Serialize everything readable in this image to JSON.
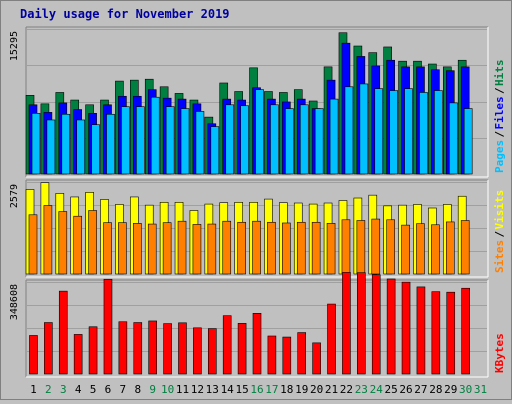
{
  "chart_data": {
    "type": "bar",
    "title": "Daily usage for November 2019",
    "colors": {
      "background": "#c0c0c0",
      "title": "#0000a0",
      "pages": "#00c0ff",
      "files": "#0000ff",
      "hits": "#008040",
      "sites": "#ff8000",
      "visits": "#ffff00",
      "kbytes": "#ff0000",
      "weekend_label": "#008040"
    },
    "x": [
      "1",
      "2",
      "3",
      "4",
      "5",
      "6",
      "7",
      "8",
      "9",
      "10",
      "11",
      "12",
      "13",
      "14",
      "15",
      "16",
      "17",
      "18",
      "19",
      "20",
      "21",
      "22",
      "23",
      "24",
      "25",
      "26",
      "27",
      "28",
      "29",
      "30",
      "31"
    ],
    "weekend_days": [
      "2",
      "3",
      "9",
      "10",
      "16",
      "17",
      "23",
      "24",
      "30",
      "31"
    ],
    "panels": [
      {
        "id": "hits_files_pages",
        "ytick": "15295",
        "ymax": 15295,
        "legend": [
          "Pages",
          "Files",
          "Hits"
        ],
        "series": [
          {
            "name": "Hits",
            "color": "#008040",
            "values": [
              8300,
              7400,
              8600,
              7800,
              7300,
              7800,
              9800,
              9900,
              10000,
              9200,
              8500,
              7800,
              6000,
              9600,
              8700,
              11200,
              8700,
              8600,
              8900,
              7700,
              11300,
              14900,
              13500,
              12800,
              13400,
              11900,
              11900,
              11600,
              11300,
              12000,
              0
            ]
          },
          {
            "name": "Files",
            "color": "#0000ff",
            "values": [
              7300,
              6500,
              7500,
              6800,
              6400,
              7300,
              8200,
              8200,
              8900,
              8000,
              7900,
              7400,
              5300,
              7900,
              7800,
              9100,
              7900,
              7600,
              7900,
              6900,
              9900,
              13800,
              12400,
              11400,
              12000,
              11300,
              11300,
              11000,
              10900,
              11300,
              0
            ]
          },
          {
            "name": "Pages",
            "color": "#00c0ff",
            "values": [
              6400,
              5700,
              6300,
              5700,
              5200,
              6300,
              7100,
              7100,
              8100,
              7100,
              6900,
              6600,
              5000,
              7300,
              7200,
              8900,
              7300,
              6900,
              7300,
              6900,
              7900,
              9200,
              9500,
              9000,
              8800,
              9000,
              8600,
              8800,
              7500,
              6900,
              0
            ]
          }
        ]
      },
      {
        "id": "visits_sites",
        "ytick": "2579",
        "ymax": 2579,
        "legend": [
          "Sites",
          "Visits"
        ],
        "series": [
          {
            "name": "Visits",
            "color": "#ffff00",
            "values": [
              2370,
              2560,
              2260,
              2160,
              2290,
              2090,
              1950,
              2160,
              1930,
              2010,
              2010,
              1780,
              1960,
              2000,
              2010,
              2010,
              2100,
              2000,
              1990,
              1960,
              1990,
              2060,
              2130,
              2210,
              1910,
              1930,
              1950,
              1850,
              1950,
              2180,
              0
            ]
          },
          {
            "name": "Sites",
            "color": "#ff8000",
            "values": [
              1660,
              1920,
              1750,
              1620,
              1780,
              1440,
              1440,
              1420,
              1400,
              1440,
              1480,
              1390,
              1400,
              1480,
              1450,
              1480,
              1450,
              1430,
              1450,
              1450,
              1420,
              1520,
              1500,
              1540,
              1520,
              1370,
              1410,
              1380,
              1460,
              1500,
              0
            ]
          }
        ]
      },
      {
        "id": "kbytes",
        "ytick": "348608",
        "ymax": 348608,
        "legend": [
          "KBytes"
        ],
        "series": [
          {
            "name": "KBytes",
            "color": "#ff0000",
            "values": [
              146000,
              195000,
              314000,
              150000,
              179000,
              359000,
              198000,
              195000,
              201000,
              191000,
              194000,
              175000,
              172000,
              221000,
              192000,
              230000,
              144000,
              140000,
              157000,
              118000,
              265000,
              385000,
              384000,
              376000,
              360000,
              348000,
              330000,
              312000,
              310000,
              325000,
              0
            ]
          }
        ]
      }
    ]
  }
}
